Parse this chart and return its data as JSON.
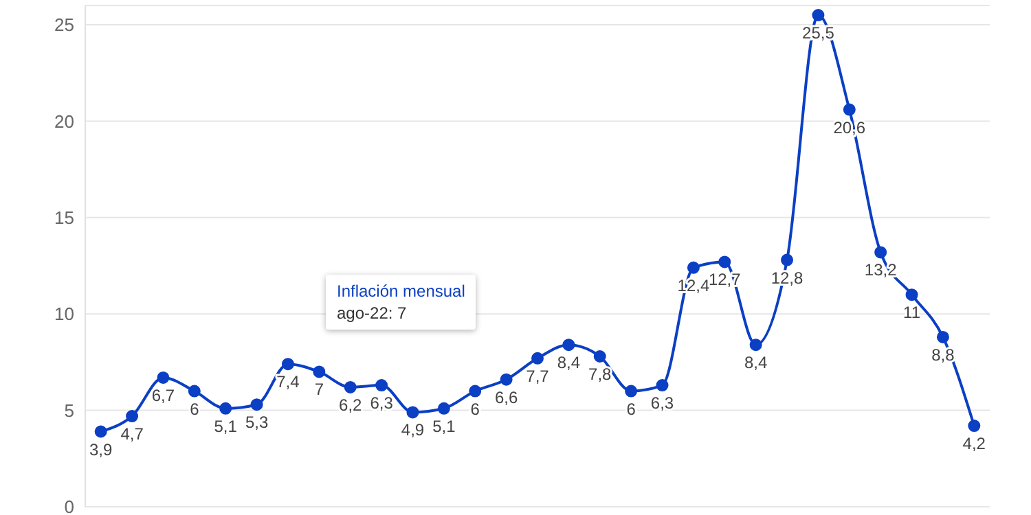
{
  "chart_data": {
    "type": "line",
    "categories": [
      null,
      null,
      null,
      null,
      null,
      null,
      null,
      null,
      null,
      null,
      null,
      null,
      null,
      null,
      null,
      null,
      null,
      null,
      null,
      null,
      null,
      null,
      null,
      null,
      null,
      null,
      null,
      null,
      null
    ],
    "series": [
      {
        "name": "Inflación mensual",
        "color": "#0b3fc4",
        "values": [
          3.9,
          4.7,
          6.7,
          6,
          5.1,
          5.3,
          7.4,
          7,
          6.2,
          6.3,
          4.9,
          5.1,
          6,
          6.6,
          7.7,
          8.4,
          7.8,
          6,
          6.3,
          12.4,
          12.7,
          8.4,
          12.8,
          25.5,
          20.6,
          13.2,
          11,
          8.8,
          4.2
        ],
        "value_labels": [
          "3,9",
          "4,7",
          "6,7",
          "6",
          "5,1",
          "5,3",
          "7,4",
          "7",
          "6,2",
          "6,3",
          "4,9",
          "5,1",
          "6",
          "6,6",
          "7,7",
          "8,4",
          "7,8",
          "6",
          "6,3",
          "12,4",
          "12,7",
          "8,4",
          "12,8",
          "25,5",
          "20,6",
          "13,2",
          "11",
          "8,8",
          "4,2"
        ]
      }
    ],
    "annotations": [
      "ago-22: 7"
    ],
    "ylim": [
      0,
      26
    ],
    "yticks": [
      0,
      5,
      10,
      15,
      20,
      25
    ],
    "grid": "y",
    "marker": "circle",
    "line_style": "solid",
    "tick_labels": "y"
  }
}
